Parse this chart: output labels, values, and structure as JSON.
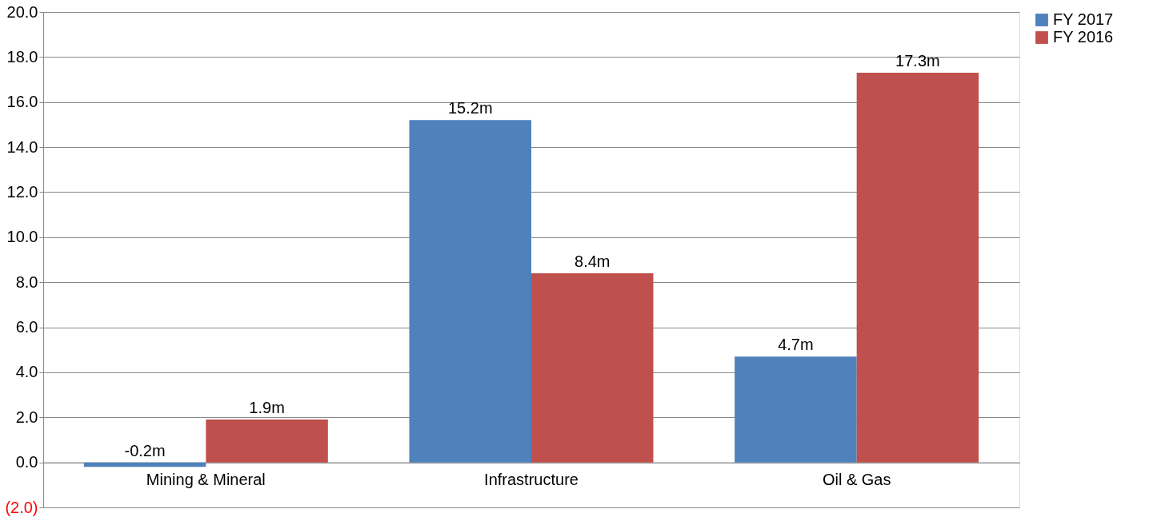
{
  "chart_data": {
    "type": "bar",
    "categories": [
      "Mining & Mineral",
      "Infrastructure",
      "Oil & Gas"
    ],
    "series": [
      {
        "name": "FY 2017",
        "color": "#4f81bd",
        "values": [
          -0.2,
          15.2,
          4.7
        ],
        "value_labels": [
          "-0.2m",
          "15.2m",
          "4.7m"
        ]
      },
      {
        "name": "FY 2016",
        "color": "#c0504d",
        "values": [
          1.9,
          8.4,
          17.3
        ],
        "value_labels": [
          "1.9m",
          "8.4m",
          "17.3m"
        ]
      }
    ],
    "ylim": [
      -2,
      20
    ],
    "yticks": [
      {
        "value": -2,
        "label": "(2.0)"
      },
      {
        "value": 0,
        "label": "0.0"
      },
      {
        "value": 2,
        "label": "2.0"
      },
      {
        "value": 4,
        "label": "4.0"
      },
      {
        "value": 6,
        "label": "6.0"
      },
      {
        "value": 8,
        "label": "8.0"
      },
      {
        "value": 10,
        "label": "10.0"
      },
      {
        "value": 12,
        "label": "12.0"
      },
      {
        "value": 14,
        "label": "14.0"
      },
      {
        "value": 16,
        "label": "16.0"
      },
      {
        "value": 18,
        "label": "18.0"
      },
      {
        "value": 20,
        "label": "20.0"
      }
    ],
    "grid": "y",
    "legend": "right"
  }
}
